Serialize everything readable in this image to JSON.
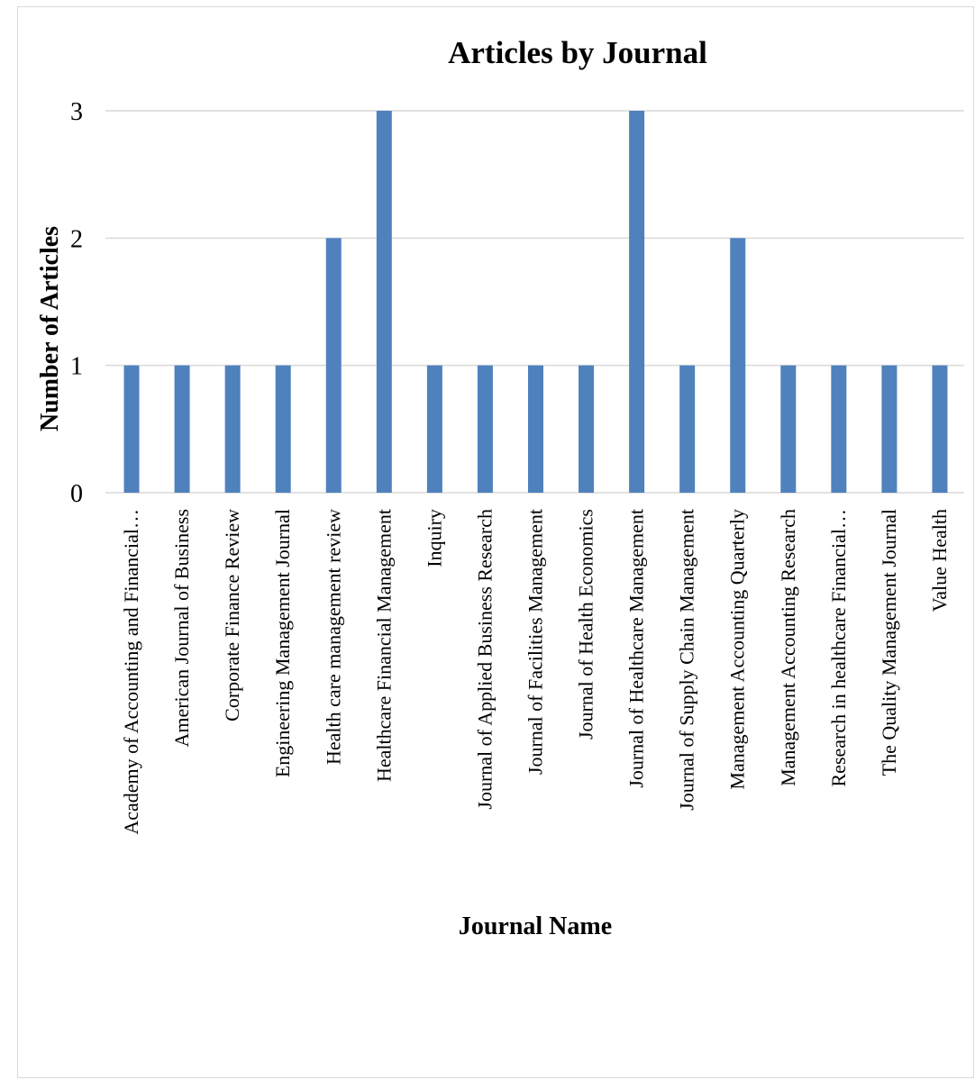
{
  "chart_data": {
    "type": "bar",
    "title": "Articles by Journal",
    "xlabel": "Journal Name",
    "ylabel": "Number of Articles",
    "categories": [
      "Academy of Accounting and Financial…",
      "American Journal of Business",
      "Corporate Finance Review",
      "Engineering Management Journal",
      "Health care management review",
      "Healthcare Financial Management",
      "Inquiry",
      "Journal of Applied Business Research",
      "Journal of Facilities Management",
      "Journal of Health Economics",
      "Journal of Healthcare Management",
      "Journal of Supply Chain Management",
      "Management Accounting Quarterly",
      "Management Accounting Research",
      "Research in healthcare Financial…",
      "The Quality Management Journal",
      "Value Health"
    ],
    "values": [
      1,
      1,
      1,
      1,
      2,
      3,
      1,
      1,
      1,
      1,
      3,
      1,
      2,
      1,
      1,
      1,
      1
    ],
    "ylim": [
      0,
      3
    ],
    "yticks": [
      "0",
      "1",
      "2",
      "3"
    ],
    "grid": true,
    "legend": "none",
    "bar_color": "#4f81bd",
    "grid_color": "#d9d9d9"
  }
}
